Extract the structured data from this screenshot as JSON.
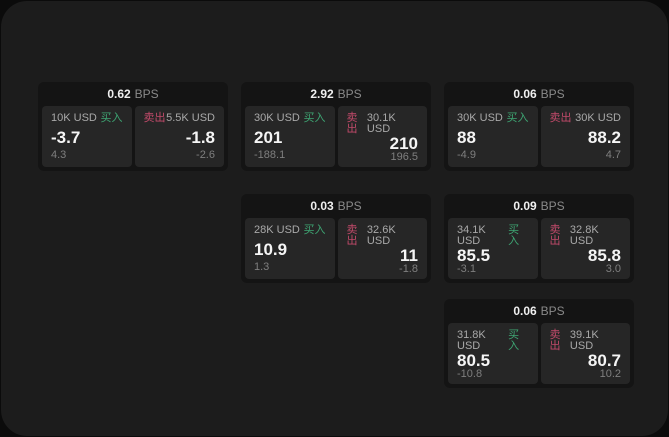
{
  "labels": {
    "bps_unit": "BPS",
    "buy": "买入",
    "sell": "卖出"
  },
  "colors": {
    "buy_accent": "#3ea573",
    "sell_accent": "#c24a6a",
    "surface": "#1c1c1c",
    "card": "#141414",
    "panel": "#262626"
  },
  "cards": [
    {
      "bps": "0.62",
      "buy": {
        "amount": "10K USD",
        "price": "-3.7",
        "delta": "4.3"
      },
      "sell": {
        "amount": "5.5K USD",
        "price": "-1.8",
        "delta": "-2.6"
      }
    },
    {
      "bps": "2.92",
      "buy": {
        "amount": "30K USD",
        "price": "201",
        "delta": "-188.1"
      },
      "sell": {
        "amount": "30.1K USD",
        "price": "210",
        "delta": "196.5"
      }
    },
    {
      "bps": "0.06",
      "buy": {
        "amount": "30K USD",
        "price": "88",
        "delta": "-4.9"
      },
      "sell": {
        "amount": "30K USD",
        "price": "88.2",
        "delta": "4.7"
      }
    },
    {
      "bps": "0.03",
      "buy": {
        "amount": "28K USD",
        "price": "10.9",
        "delta": "1.3"
      },
      "sell": {
        "amount": "32.6K USD",
        "price": "11",
        "delta": "-1.8"
      }
    },
    {
      "bps": "0.09",
      "buy": {
        "amount": "34.1K USD",
        "price": "85.5",
        "delta": "-3.1"
      },
      "sell": {
        "amount": "32.8K USD",
        "price": "85.8",
        "delta": "3.0"
      }
    },
    {
      "bps": "0.06",
      "buy": {
        "amount": "31.8K USD",
        "price": "80.5",
        "delta": "-10.8"
      },
      "sell": {
        "amount": "39.1K USD",
        "price": "80.7",
        "delta": "10.2"
      }
    }
  ]
}
